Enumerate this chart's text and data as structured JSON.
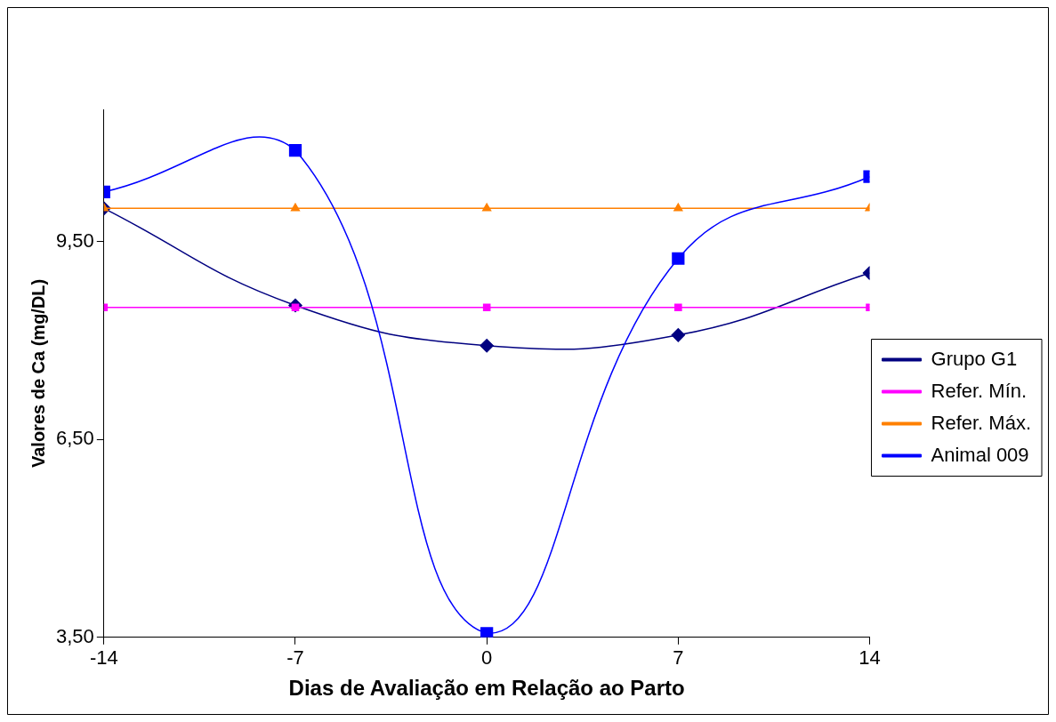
{
  "chart_data": {
    "type": "line",
    "xlabel": "Dias de Avaliação em Relação ao Parto",
    "ylabel": "Valores de Ca (mg/DL)",
    "x": [
      -14,
      -7,
      0,
      7,
      14
    ],
    "xlim": [
      -14,
      14
    ],
    "xticks": [
      -14,
      -7,
      0,
      7,
      14
    ],
    "ylim": [
      3.5,
      11.5
    ],
    "yticks": [
      {
        "value": 3.5,
        "label": "3,50"
      },
      {
        "value": 6.5,
        "label": "6,50"
      },
      {
        "value": 9.5,
        "label": "9,50"
      }
    ],
    "grid": false,
    "legend": "right",
    "series": [
      {
        "name": "Grupo G1",
        "color": "#000080",
        "marker": "diamond",
        "values": [
          10.0,
          8.53,
          7.92,
          8.08,
          9.02
        ]
      },
      {
        "name": "Refer. Mín.",
        "color": "#ff00ff",
        "marker": "square",
        "values": [
          8.5,
          8.5,
          8.5,
          8.5,
          8.5
        ]
      },
      {
        "name": "Refer. Máx.",
        "color": "#ff8000",
        "marker": "triangle",
        "values": [
          10.0,
          10.0,
          10.0,
          10.0,
          10.0
        ]
      },
      {
        "name": "Animal 009",
        "color": "#0000ff",
        "marker": "square",
        "values": [
          10.25,
          10.88,
          3.56,
          9.24,
          10.48
        ]
      }
    ]
  }
}
